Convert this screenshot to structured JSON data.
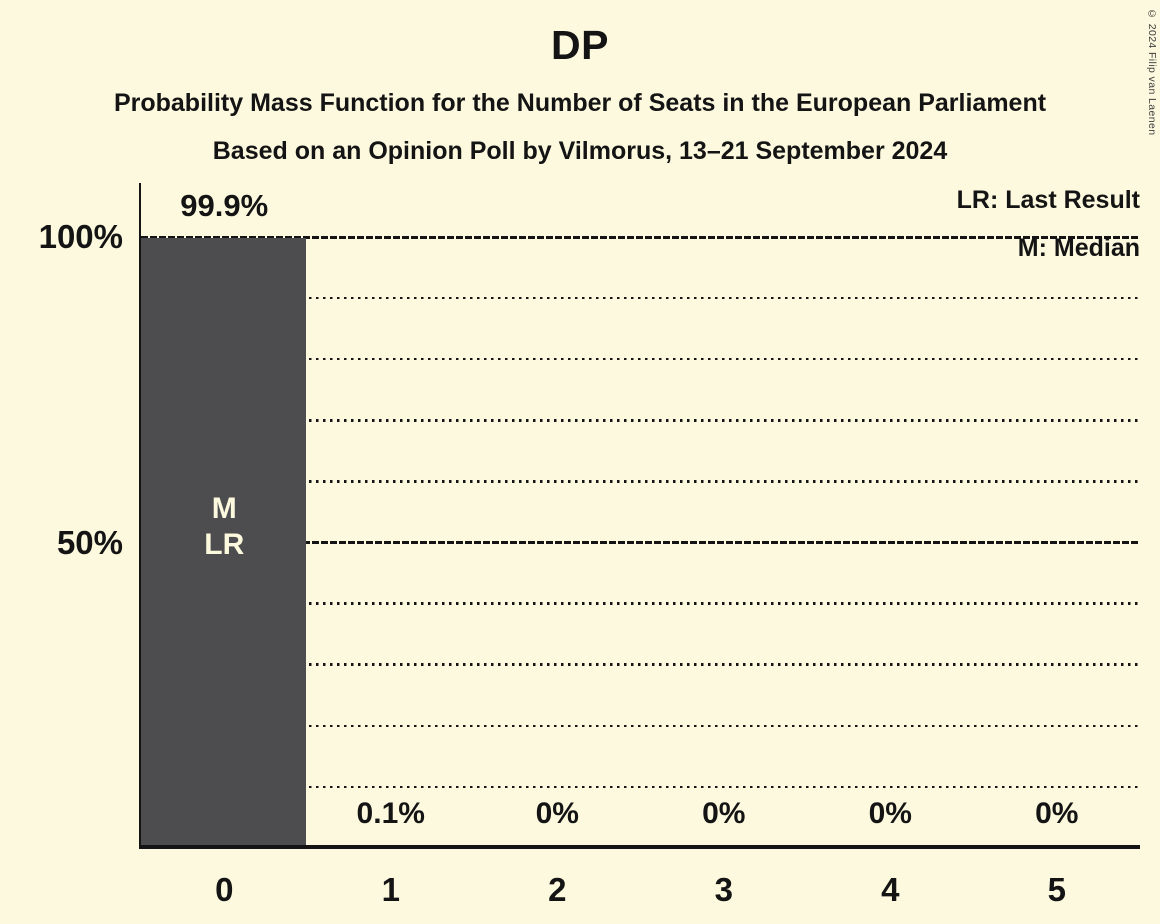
{
  "page": {
    "background": "#fdf9de",
    "text_color": "#141414",
    "copyright_notice": "© 2024 Filip van Laenen"
  },
  "header": {
    "title": "DP",
    "subtitle": "Probability Mass Function for the Number of Seats in the European Parliament",
    "poll_details": "Based on an Opinion Poll by Vilmorus, 13–21 September 2024"
  },
  "legend": {
    "last_result": "LR: Last Result",
    "median": "M: Median"
  },
  "chart_data": {
    "type": "bar",
    "title": "DP",
    "x_categories": [
      "0",
      "1",
      "2",
      "3",
      "4",
      "5"
    ],
    "values_pct": [
      99.9,
      0.1,
      0,
      0,
      0,
      0
    ],
    "value_labels": [
      "99.9%",
      "0.1%",
      "0%",
      "0%",
      "0%",
      "0%"
    ],
    "y_axis": {
      "range_pct": [
        0,
        100
      ],
      "ticks": [
        {
          "pct": 100,
          "label": "100%"
        },
        {
          "pct": 50,
          "label": "50%"
        }
      ],
      "major_gridlines_pct": [
        100,
        50
      ],
      "minor_gridlines_pct": [
        90,
        80,
        70,
        60,
        40,
        30,
        20,
        10
      ]
    },
    "legend_position": "top-right",
    "grid": true,
    "bar_color": "#4d4d4f",
    "bar_label_color": "#fdf9de",
    "annotations": [
      {
        "category": "0",
        "lines": [
          "M",
          "LR"
        ],
        "meaning": "Median, Last Result"
      }
    ]
  }
}
